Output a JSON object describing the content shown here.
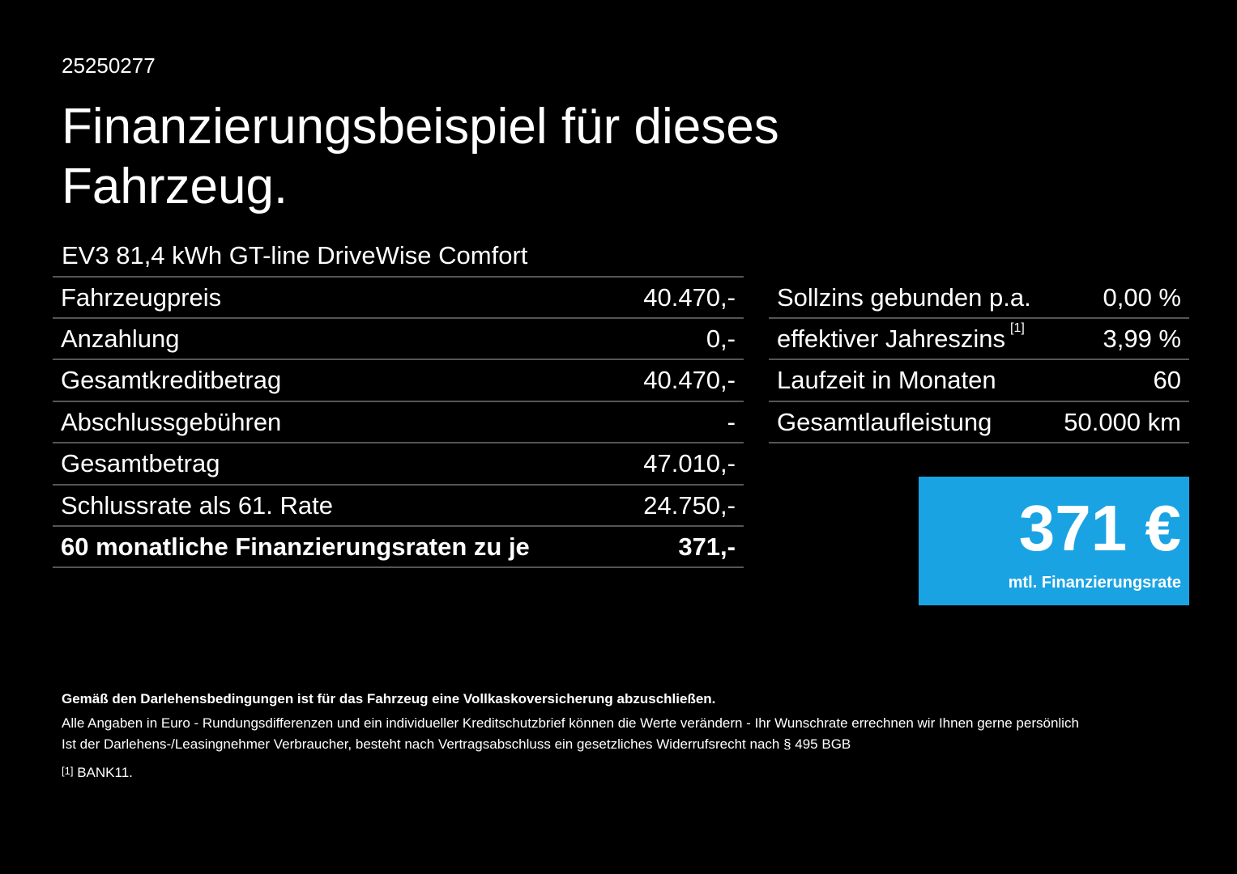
{
  "header": {
    "id": "25250277",
    "title_line1": "Finanzierungsbeispiel für dieses",
    "title_line2": "Fahrzeug.",
    "model": "EV3 81,4 kWh GT-line DriveWise Comfort"
  },
  "left_table": {
    "rows": [
      [
        "Fahrzeugpreis",
        "40.470,-"
      ],
      [
        "Anzahlung",
        "0,-"
      ],
      [
        "Gesamtkreditbetrag",
        "40.470,-"
      ],
      [
        "Abschlussgebühren",
        "-"
      ],
      [
        "Gesamtbetrag",
        "47.010,-"
      ],
      [
        "Schlussrate als 61. Rate",
        "24.750,-"
      ],
      [
        "60 monatliche Finanzierungsraten zu je",
        "371,-"
      ]
    ]
  },
  "right_table": {
    "rows": [
      [
        "Sollzins gebunden p.a.",
        "0,00 %"
      ],
      [
        "effektiver Jahreszins",
        "3,99 %"
      ],
      [
        "Laufzeit in Monaten",
        "60"
      ],
      [
        "Gesamtlaufleistung",
        "50.000 km"
      ]
    ],
    "footnote_ref": "[1]"
  },
  "rate_box": {
    "amount": "371 €",
    "label": "mtl. Finanzierungsrate"
  },
  "footer": {
    "bold": "Gemäß den Darlehensbedingungen ist für das Fahrzeug eine Vollkaskoversicherung abzuschließen.",
    "line1": "Alle Angaben in Euro - Rundungsdifferenzen und ein individueller Kreditschutzbrief können die Werte verändern - Ihr Wunschrate errechnen wir Ihnen gerne persönlich",
    "line2": "Ist der Darlehens-/Leasingnehmer Verbraucher, besteht nach Vertragsabschluss ein gesetzliches Widerrufsrecht nach § 495 BGB",
    "note_ref": "[1]",
    "note_text": "BANK11."
  }
}
